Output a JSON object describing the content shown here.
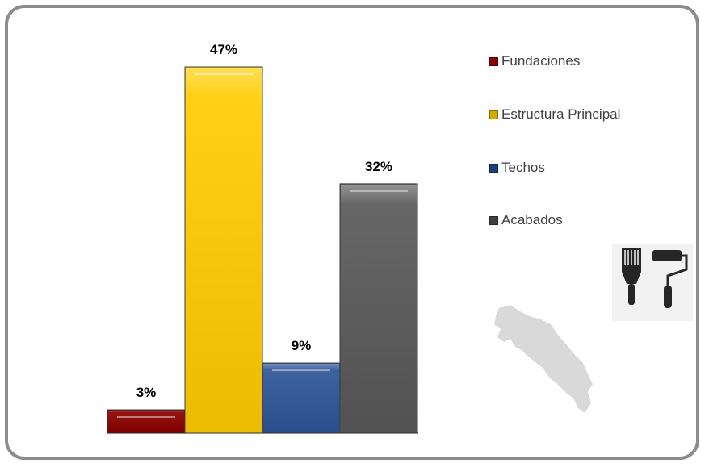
{
  "chart_data": {
    "type": "bar",
    "categories": [
      "Fundaciones",
      "Estructura Principal",
      "Techos",
      "Acabados"
    ],
    "values": [
      3,
      47,
      9,
      32
    ],
    "value_labels": [
      "3%",
      "47%",
      "9%",
      "32%"
    ],
    "colors": [
      "#8b0000",
      "#ffcc00",
      "#2e5597",
      "#595959"
    ],
    "title": "",
    "xlabel": "",
    "ylabel": "",
    "ylim": [
      0,
      47
    ],
    "grid": false,
    "legend_position": "right"
  },
  "legend": {
    "items": [
      {
        "label": "Fundaciones",
        "color": "#8b0000"
      },
      {
        "label": "Estructura Principal",
        "color": "#d4a900"
      },
      {
        "label": "Techos",
        "color": "#1f3f7a"
      },
      {
        "label": "Acabados",
        "color": "#404040"
      }
    ]
  },
  "icons": {
    "tools": "paintbrush-and-roller-icon",
    "map": "costa-rica-map-icon"
  }
}
